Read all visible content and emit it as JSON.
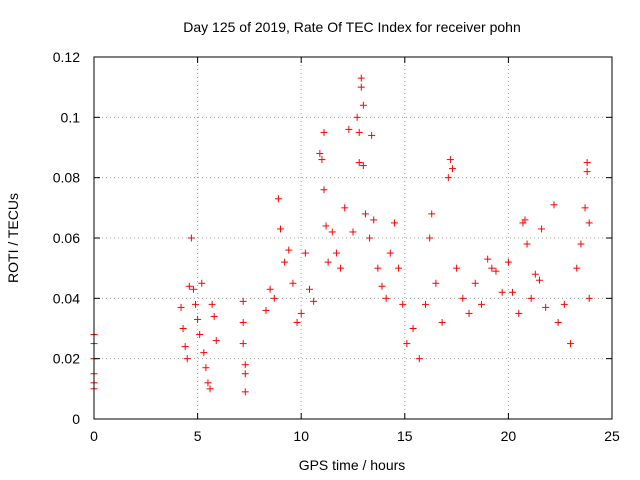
{
  "chart_data": {
    "type": "scatter",
    "title": "Day 125 of 2019, Rate Of TEC Index for receiver pohn",
    "xlabel": "GPS time / hours",
    "ylabel": "ROTI / TECUs",
    "xlim": [
      0,
      25
    ],
    "ylim": [
      0,
      0.12
    ],
    "xticks": [
      0,
      5,
      10,
      15,
      20,
      25
    ],
    "xtick_labels": [
      "0",
      "5",
      "10",
      "15",
      "20",
      "25"
    ],
    "yticks": [
      0,
      0.02,
      0.04,
      0.06,
      0.08,
      0.1,
      0.12
    ],
    "ytick_labels": [
      "0",
      "0.02",
      "0.04",
      "0.06",
      "0.08",
      "0.1",
      "0.12"
    ],
    "grid": true,
    "marker": "+",
    "color": "#ff0000",
    "series": [
      {
        "name": "ROTI",
        "points": [
          [
            0.0,
            0.028
          ],
          [
            0.0,
            0.025
          ],
          [
            0.0,
            0.02
          ],
          [
            0.0,
            0.015
          ],
          [
            0.0,
            0.012
          ],
          [
            0.0,
            0.01
          ],
          [
            4.2,
            0.037
          ],
          [
            4.3,
            0.03
          ],
          [
            4.4,
            0.024
          ],
          [
            4.5,
            0.02
          ],
          [
            4.6,
            0.044
          ],
          [
            4.7,
            0.06
          ],
          [
            4.8,
            0.043
          ],
          [
            4.9,
            0.038
          ],
          [
            5.0,
            0.033
          ],
          [
            5.1,
            0.028
          ],
          [
            5.2,
            0.045
          ],
          [
            5.3,
            0.022
          ],
          [
            5.4,
            0.017
          ],
          [
            5.5,
            0.012
          ],
          [
            5.6,
            0.01
          ],
          [
            5.7,
            0.038
          ],
          [
            5.8,
            0.034
          ],
          [
            5.9,
            0.026
          ],
          [
            7.2,
            0.039
          ],
          [
            7.2,
            0.032
          ],
          [
            7.2,
            0.025
          ],
          [
            7.3,
            0.018
          ],
          [
            7.3,
            0.015
          ],
          [
            7.3,
            0.009
          ],
          [
            8.3,
            0.036
          ],
          [
            8.5,
            0.043
          ],
          [
            8.7,
            0.04
          ],
          [
            8.9,
            0.073
          ],
          [
            9.0,
            0.063
          ],
          [
            9.2,
            0.052
          ],
          [
            9.4,
            0.056
          ],
          [
            9.6,
            0.045
          ],
          [
            9.8,
            0.032
          ],
          [
            10.0,
            0.035
          ],
          [
            10.2,
            0.055
          ],
          [
            10.4,
            0.043
          ],
          [
            10.6,
            0.039
          ],
          [
            10.9,
            0.088
          ],
          [
            11.0,
            0.086
          ],
          [
            11.1,
            0.095
          ],
          [
            11.1,
            0.076
          ],
          [
            11.2,
            0.064
          ],
          [
            11.3,
            0.052
          ],
          [
            11.5,
            0.062
          ],
          [
            11.7,
            0.055
          ],
          [
            11.9,
            0.05
          ],
          [
            12.1,
            0.07
          ],
          [
            12.3,
            0.096
          ],
          [
            12.5,
            0.062
          ],
          [
            12.7,
            0.1
          ],
          [
            12.8,
            0.095
          ],
          [
            12.8,
            0.085
          ],
          [
            12.9,
            0.11
          ],
          [
            12.9,
            0.113
          ],
          [
            13.0,
            0.104
          ],
          [
            13.0,
            0.084
          ],
          [
            13.1,
            0.068
          ],
          [
            13.3,
            0.06
          ],
          [
            13.4,
            0.094
          ],
          [
            13.5,
            0.066
          ],
          [
            13.7,
            0.05
          ],
          [
            13.9,
            0.044
          ],
          [
            14.1,
            0.04
          ],
          [
            14.3,
            0.055
          ],
          [
            14.5,
            0.065
          ],
          [
            14.7,
            0.05
          ],
          [
            14.9,
            0.038
          ],
          [
            15.1,
            0.025
          ],
          [
            15.4,
            0.03
          ],
          [
            15.7,
            0.02
          ],
          [
            16.0,
            0.038
          ],
          [
            16.2,
            0.06
          ],
          [
            16.3,
            0.068
          ],
          [
            16.5,
            0.045
          ],
          [
            16.8,
            0.032
          ],
          [
            17.1,
            0.08
          ],
          [
            17.2,
            0.086
          ],
          [
            17.3,
            0.083
          ],
          [
            17.5,
            0.05
          ],
          [
            17.8,
            0.04
          ],
          [
            18.1,
            0.035
          ],
          [
            18.4,
            0.045
          ],
          [
            18.7,
            0.038
          ],
          [
            19.0,
            0.053
          ],
          [
            19.2,
            0.05
          ],
          [
            19.4,
            0.049
          ],
          [
            19.7,
            0.042
          ],
          [
            20.0,
            0.052
          ],
          [
            20.2,
            0.042
          ],
          [
            20.5,
            0.035
          ],
          [
            20.7,
            0.065
          ],
          [
            20.8,
            0.066
          ],
          [
            20.9,
            0.058
          ],
          [
            21.1,
            0.04
          ],
          [
            21.3,
            0.048
          ],
          [
            21.5,
            0.046
          ],
          [
            21.6,
            0.063
          ],
          [
            21.8,
            0.037
          ],
          [
            22.2,
            0.071
          ],
          [
            22.4,
            0.032
          ],
          [
            22.7,
            0.038
          ],
          [
            23.0,
            0.025
          ],
          [
            23.3,
            0.05
          ],
          [
            23.5,
            0.058
          ],
          [
            23.7,
            0.07
          ],
          [
            23.8,
            0.085
          ],
          [
            23.8,
            0.082
          ],
          [
            23.9,
            0.065
          ],
          [
            23.9,
            0.04
          ]
        ]
      }
    ]
  }
}
